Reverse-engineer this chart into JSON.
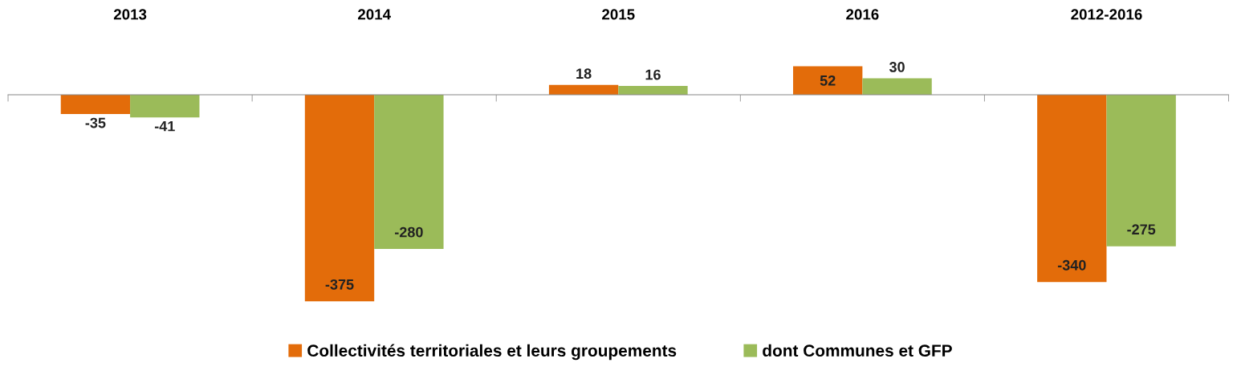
{
  "chart_data": {
    "type": "bar",
    "categories": [
      "2013",
      "2014",
      "2015",
      "2016",
      "2012-2016"
    ],
    "series": [
      {
        "name": "Collectivités territoriales et leurs groupements",
        "color": "#e36c0a",
        "values": [
          -35,
          -375,
          18,
          52,
          -340
        ]
      },
      {
        "name": "dont Communes et GFP",
        "color": "#9bbb59",
        "values": [
          -41,
          -280,
          16,
          30,
          -275
        ]
      }
    ],
    "data_labels": true,
    "legend": "bottom",
    "grid": false
  }
}
